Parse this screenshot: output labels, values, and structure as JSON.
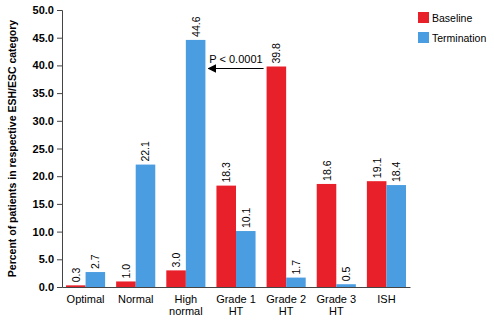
{
  "chart_data": {
    "type": "bar",
    "y_label": "Percent of patients in respective ESH/ESC category",
    "categories": [
      "Optimal",
      "Normal",
      "High normal",
      "Grade 1 HT",
      "Grade 2 HT",
      "Grade 3 HT",
      "ISH"
    ],
    "series": [
      {
        "name": "Baseline",
        "color": "#e8202a",
        "values": [
          0.3,
          1.0,
          3.0,
          18.3,
          39.8,
          18.6,
          19.1
        ],
        "value_labels": [
          "0.3",
          "1.0",
          "3.0",
          "18.3",
          "39.8",
          "18.6",
          "19.1"
        ]
      },
      {
        "name": "Termination",
        "color": "#4a9de0",
        "values": [
          2.7,
          22.1,
          44.6,
          10.1,
          1.7,
          0.5,
          18.4
        ],
        "value_labels": [
          "2.7",
          "22.1",
          "44.6",
          "10.1",
          "1.7",
          "0.5",
          "18.4"
        ]
      }
    ],
    "ylim": [
      0,
      50
    ],
    "yticks": [
      {
        "value": 0,
        "label": "0.0"
      },
      {
        "value": 5,
        "label": "5.0"
      },
      {
        "value": 10,
        "label": "10.0"
      },
      {
        "value": 15,
        "label": "15.0"
      },
      {
        "value": 20,
        "label": "20.0"
      },
      {
        "value": 25,
        "label": "25.0"
      },
      {
        "value": 30,
        "label": "30.0"
      },
      {
        "value": 35,
        "label": "35.0"
      },
      {
        "value": 40,
        "label": "40.0"
      },
      {
        "value": 45,
        "label": "45.0"
      },
      {
        "value": 50,
        "label": "50.0"
      }
    ],
    "annotation": "P < 0.0001",
    "data_labels": true,
    "legend": "upper right",
    "grid": false
  }
}
